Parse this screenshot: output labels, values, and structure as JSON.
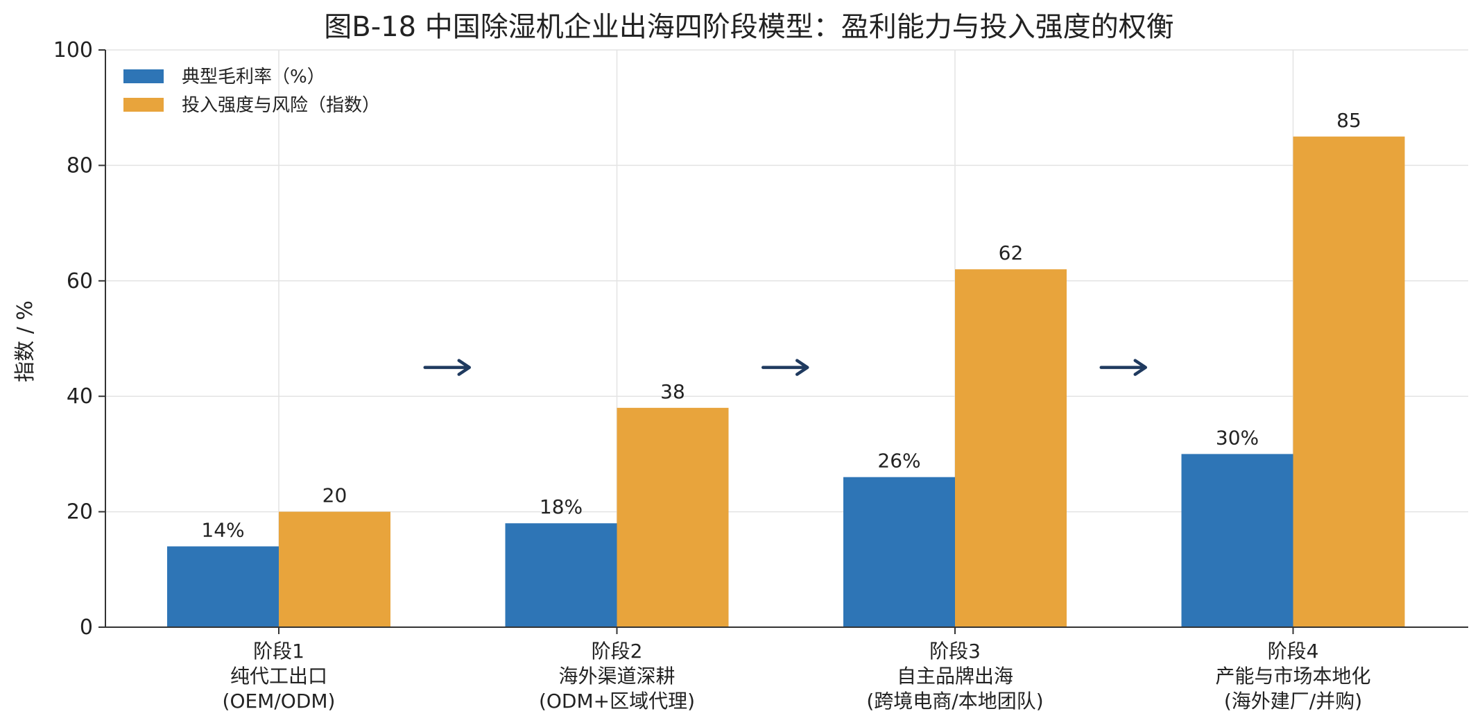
{
  "chart_data": {
    "type": "bar",
    "title": "图B-18  中国除湿机企业出海四阶段模型：盈利能力与投入强度的权衡",
    "ylabel": "指数 / %",
    "xlabel": "",
    "ylim": [
      0,
      100
    ],
    "yticks": [
      "0",
      "20",
      "40",
      "60",
      "80",
      "100"
    ],
    "grid": true,
    "legend_position": "top-left",
    "categories": [
      [
        "阶段1",
        "纯代工出口",
        "(OEM/ODM)"
      ],
      [
        "阶段2",
        "海外渠道深耕",
        "(ODM+区域代理)"
      ],
      [
        "阶段3",
        "自主品牌出海",
        "(跨境电商/本地团队)"
      ],
      [
        "阶段4",
        "产能与市场本地化",
        "(海外建厂/并购)"
      ]
    ],
    "series": [
      {
        "name": "典型毛利率（%）",
        "values": [
          14,
          18,
          26,
          30
        ],
        "labels": [
          "14%",
          "18%",
          "26%",
          "30%"
        ],
        "color": "#2e75b6"
      },
      {
        "name": "投入强度与风险（指数）",
        "values": [
          20,
          38,
          62,
          85
        ],
        "labels": [
          "20",
          "38",
          "62",
          "85"
        ],
        "color": "#e8a43c"
      }
    ],
    "annotations": {
      "arrow_color": "#1f3a5f",
      "arrows_between_stages": 3,
      "arrow_level": 45
    }
  }
}
